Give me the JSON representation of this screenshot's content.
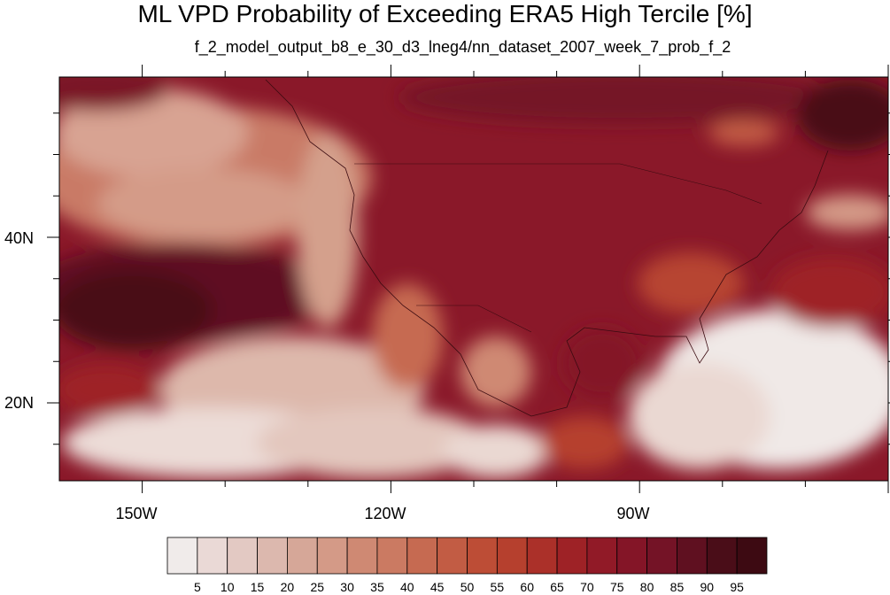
{
  "title": "ML VPD Probability of Exceeding ERA5 High Tercile [%]",
  "subtitle": "f_2_model_output_b8_e_30_d3_lneg4/nn_dataset_2007_week_7_prob_f_2",
  "map": {
    "lon_range": [
      -160,
      -60
    ],
    "lat_range": [
      10,
      59
    ],
    "lon_labels": [
      {
        "value": -150,
        "label": "150W"
      },
      {
        "value": -120,
        "label": "120W"
      },
      {
        "value": -90,
        "label": "90W"
      }
    ],
    "lat_labels": [
      {
        "value": 40,
        "label": "40N"
      },
      {
        "value": 20,
        "label": "20N"
      }
    ]
  },
  "colorbar": {
    "labels": [
      "5",
      "10",
      "15",
      "20",
      "25",
      "30",
      "35",
      "40",
      "45",
      "50",
      "55",
      "60",
      "65",
      "70",
      "75",
      "80",
      "85",
      "90",
      "95"
    ],
    "colors": [
      "#f0ebea",
      "#ead9d6",
      "#e3c9c3",
      "#dcb8ae",
      "#d6a798",
      "#d49a87",
      "#cf8973",
      "#cb7a62",
      "#c66a51",
      "#c25c44",
      "#bd4d36",
      "#b6402e",
      "#ab3029",
      "#9e2226",
      "#911a27",
      "#841527",
      "#741326",
      "#5f1020",
      "#4a0d18"
    ]
  }
}
